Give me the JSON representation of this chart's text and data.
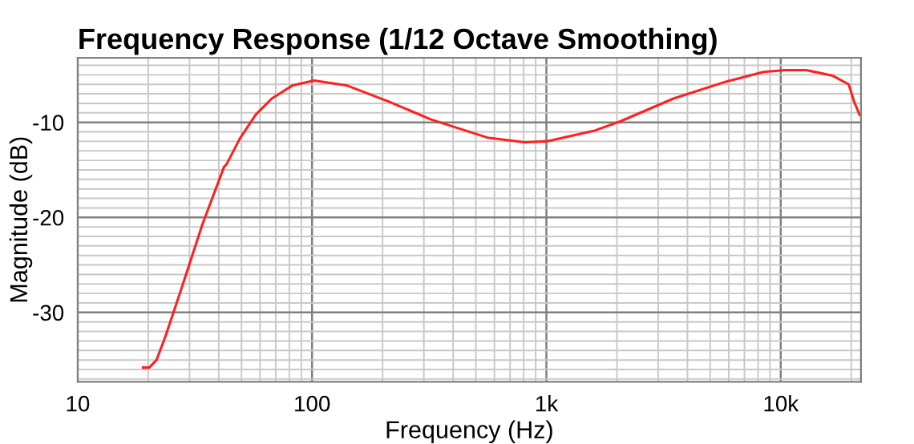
{
  "chart_data": {
    "type": "line",
    "title": "Frequency Response (1/12 Octave Smoothing)",
    "xlabel": "Frequency (Hz)",
    "ylabel": "Magnitude (dB)",
    "log": "x",
    "grid": true,
    "marker": "none",
    "line_style": "solid",
    "xlim": [
      10,
      22000
    ],
    "xticks": [
      10,
      100,
      {
        "value": 1000,
        "label": "1k"
      },
      {
        "value": 10000,
        "label": "10k"
      }
    ],
    "ylim": [
      -37.3,
      -3.2
    ],
    "yticks": [
      -30,
      -20,
      -10
    ],
    "series": [
      {
        "color": "#ff2020",
        "x": [
          19,
          20.2,
          21.7,
          23.7,
          27.7,
          34.1,
          42.1,
          43.2,
          49.2,
          57.5,
          67.3,
          82.8,
          102,
          140,
          212,
          322,
          560,
          807,
          1000,
          1592,
          2066,
          3483,
          5870,
          8450,
          10420,
          12840,
          16700,
          19500,
          20550,
          21700
        ],
        "values": [
          -35.8,
          -35.8,
          -35.0,
          -32.5,
          -27.5,
          -20.7,
          -14.7,
          -14.4,
          -11.7,
          -9.2,
          -7.5,
          -6.1,
          -5.6,
          -6.1,
          -7.8,
          -9.7,
          -11.6,
          -12.1,
          -12.0,
          -10.9,
          -9.9,
          -7.5,
          -5.7,
          -4.7,
          -4.5,
          -4.5,
          -5.1,
          -6.0,
          -7.8,
          -9.2
        ]
      }
    ]
  }
}
